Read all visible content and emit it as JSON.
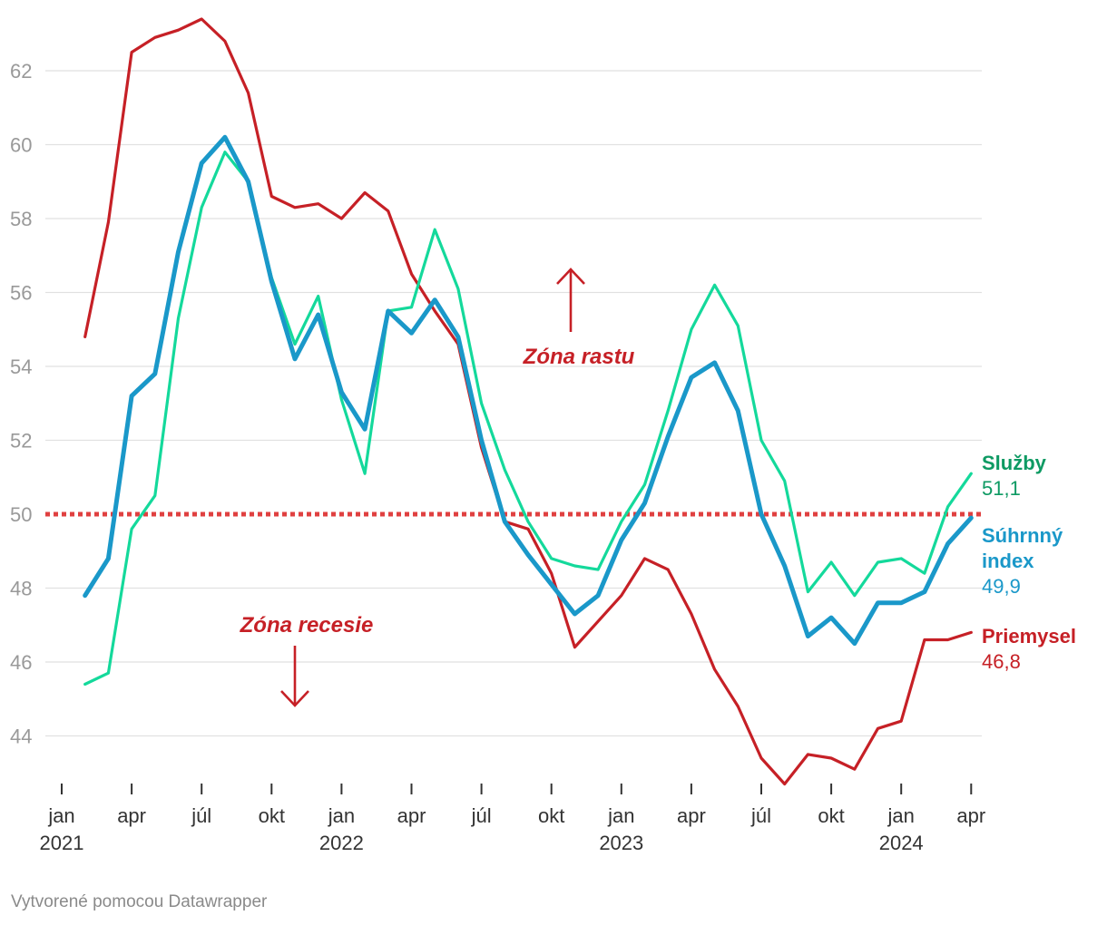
{
  "chart_data": {
    "type": "line",
    "title": "",
    "xlabel": "",
    "ylabel": "",
    "ylim": [
      42.6,
      63.4
    ],
    "yticks": [
      44,
      46,
      48,
      50,
      52,
      54,
      56,
      58,
      60,
      62
    ],
    "grid": true,
    "threshold": {
      "value": 50,
      "color": "#e04040"
    },
    "x_start": "2021-02",
    "x_end": "2024-03",
    "x_ticks": [
      {
        "month_index": 0,
        "label": "jan",
        "year": "2021"
      },
      {
        "month_index": 3,
        "label": "apr",
        "year": ""
      },
      {
        "month_index": 6,
        "label": "júl",
        "year": ""
      },
      {
        "month_index": 9,
        "label": "okt",
        "year": ""
      },
      {
        "month_index": 12,
        "label": "jan",
        "year": "2022"
      },
      {
        "month_index": 15,
        "label": "apr",
        "year": ""
      },
      {
        "month_index": 18,
        "label": "júl",
        "year": ""
      },
      {
        "month_index": 21,
        "label": "okt",
        "year": ""
      },
      {
        "month_index": 24,
        "label": "jan",
        "year": "2023"
      },
      {
        "month_index": 27,
        "label": "apr",
        "year": ""
      },
      {
        "month_index": 30,
        "label": "júl",
        "year": ""
      },
      {
        "month_index": 33,
        "label": "okt",
        "year": ""
      },
      {
        "month_index": 36,
        "label": "jan",
        "year": "2024"
      },
      {
        "month_index": 39,
        "label": "apr",
        "year": ""
      }
    ],
    "series": [
      {
        "name": "Priemysel",
        "label_name": "Priemysel",
        "last_value_label": "46,8",
        "color": "#c62026",
        "stroke": "thin",
        "values": [
          54.8,
          57.9,
          62.5,
          62.9,
          63.1,
          63.4,
          62.8,
          61.4,
          58.6,
          58.3,
          58.4,
          58.0,
          58.7,
          58.2,
          56.5,
          55.5,
          54.6,
          51.8,
          49.8,
          49.6,
          48.4,
          46.4,
          47.1,
          47.8,
          48.8,
          48.5,
          47.3,
          45.8,
          44.8,
          43.4,
          42.7,
          43.5,
          43.4,
          43.1,
          44.2,
          44.4,
          46.6,
          46.6,
          46.8
        ]
      },
      {
        "name": "Služby",
        "label_name": "Služby",
        "last_value_label": "51,1",
        "color": "#14d99b",
        "stroke": "thin",
        "values": [
          45.4,
          45.7,
          49.6,
          50.5,
          55.3,
          58.3,
          59.8,
          59.0,
          56.4,
          54.6,
          55.9,
          53.1,
          51.1,
          55.5,
          55.6,
          57.7,
          56.1,
          53.0,
          51.2,
          49.8,
          48.8,
          48.6,
          48.5,
          49.8,
          50.8,
          52.8,
          55.0,
          56.2,
          55.1,
          52.0,
          50.9,
          47.9,
          48.7,
          47.8,
          48.7,
          48.8,
          48.4,
          50.2,
          51.1
        ]
      },
      {
        "name": "Súhrnný index",
        "label_name": "Súhrnný index",
        "last_value_label": "49,9",
        "color": "#1a98c9",
        "stroke": "thick",
        "values": [
          47.8,
          48.8,
          53.2,
          53.8,
          57.1,
          59.5,
          60.2,
          59.0,
          56.3,
          54.2,
          55.4,
          53.3,
          52.3,
          55.5,
          54.9,
          55.8,
          54.8,
          52.0,
          49.8,
          48.9,
          48.1,
          47.3,
          47.8,
          49.3,
          50.3,
          52.1,
          53.7,
          54.1,
          52.8,
          50.0,
          48.6,
          46.7,
          47.2,
          46.5,
          47.6,
          47.6,
          47.9,
          49.2,
          49.9
        ]
      }
    ],
    "annotations": [
      {
        "text": "Zóna rastu",
        "arrow": "up",
        "color": "#c62026"
      },
      {
        "text": "Zóna recesie",
        "arrow": "down",
        "color": "#c62026"
      }
    ]
  },
  "footer": {
    "credit": "Vytvorené pomocou Datawrapper"
  },
  "colors": {
    "grid": "#e1e1e1",
    "axis_text": "#999999",
    "x_label": "#333333",
    "credit": "#8a8a8a"
  }
}
